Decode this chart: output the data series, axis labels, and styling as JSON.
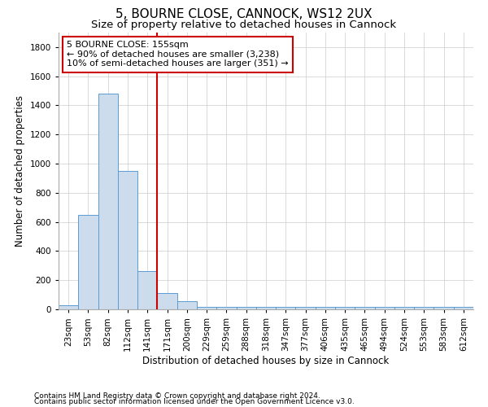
{
  "title1": "5, BOURNE CLOSE, CANNOCK, WS12 2UX",
  "title2": "Size of property relative to detached houses in Cannock",
  "xlabel": "Distribution of detached houses by size in Cannock",
  "ylabel": "Number of detached properties",
  "categories": [
    "23sqm",
    "53sqm",
    "82sqm",
    "112sqm",
    "141sqm",
    "171sqm",
    "200sqm",
    "229sqm",
    "259sqm",
    "288sqm",
    "318sqm",
    "347sqm",
    "377sqm",
    "406sqm",
    "435sqm",
    "465sqm",
    "494sqm",
    "524sqm",
    "553sqm",
    "583sqm",
    "612sqm"
  ],
  "values": [
    30,
    650,
    1480,
    950,
    260,
    110,
    55,
    15,
    15,
    15,
    15,
    15,
    15,
    15,
    15,
    15,
    15,
    15,
    15,
    15,
    15
  ],
  "bar_color": "#ccdcec",
  "bar_edge_color": "#5b9bd5",
  "vline_x": 4.5,
  "vline_color": "#cc0000",
  "annotation_text": "5 BOURNE CLOSE: 155sqm\n← 90% of detached houses are smaller (3,238)\n10% of semi-detached houses are larger (351) →",
  "annotation_box_color": "#ffffff",
  "annotation_box_edge": "#cc0000",
  "ylim": [
    0,
    1900
  ],
  "yticks": [
    0,
    200,
    400,
    600,
    800,
    1000,
    1200,
    1400,
    1600,
    1800
  ],
  "footer1": "Contains HM Land Registry data © Crown copyright and database right 2024.",
  "footer2": "Contains public sector information licensed under the Open Government Licence v3.0.",
  "bg_color": "#ffffff",
  "grid_color": "#cccccc",
  "title1_fontsize": 11,
  "title2_fontsize": 9.5,
  "axis_label_fontsize": 8.5,
  "tick_fontsize": 7.5,
  "annotation_fontsize": 8,
  "footer_fontsize": 6.5
}
